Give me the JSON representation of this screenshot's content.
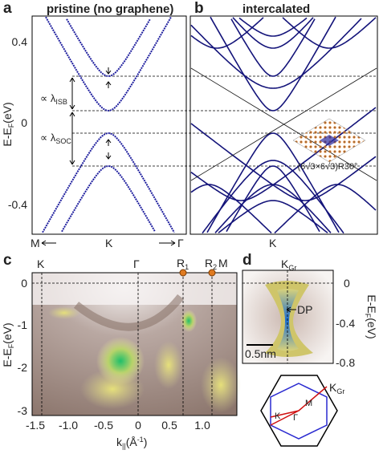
{
  "panel_a": {
    "label": "a",
    "title": "pristine (no graphene)",
    "y_label": {
      "text": "E-E",
      "sub": "F",
      "unit": "(eV)"
    },
    "y_ticks": [
      "0.4",
      "0",
      "-0.4"
    ],
    "x_labels": [
      "M",
      "K",
      "Γ"
    ],
    "annotations": [
      {
        "text": "∝ λ",
        "sub": "ISB"
      },
      {
        "text": "∝ λ",
        "sub": "SOC"
      }
    ]
  },
  "panel_b": {
    "label": "b",
    "title": "intercalated",
    "x_label": "K",
    "inset_label": "(6√3×6√3)R30°"
  },
  "panel_c": {
    "label": "c",
    "top_labels": [
      {
        "text": "K"
      },
      {
        "text": "Γ"
      },
      {
        "text": "R",
        "sub": "1"
      },
      {
        "text": "R",
        "sub": "2"
      },
      {
        "text": "M"
      }
    ],
    "y_label": {
      "text": "E-E",
      "sub": "F",
      "unit": "(eV)"
    },
    "y_ticks": [
      "0",
      "-1",
      "-2",
      "-3"
    ],
    "x_ticks": [
      "-1.5",
      "-1.0",
      "-0.5",
      "0",
      "0.5",
      "1.0"
    ],
    "x_label": {
      "text": "k",
      "sub": "||",
      "unit": "(Å",
      "sup": "-1",
      "close": ")"
    }
  },
  "panel_d": {
    "label": "d",
    "top_label": {
      "text": "K",
      "sub": "Gr"
    },
    "annotation": "DP",
    "scale_bar": "0.5nm",
    "y_ticks": [
      "0",
      "-0.4",
      "-0.8"
    ],
    "y_label": {
      "text": "E-E",
      "sub": "F",
      "unit": "(eV)"
    },
    "bz_labels": [
      {
        "text": "K",
        "sub": "Gr"
      },
      {
        "text": "M"
      },
      {
        "text": "Γ"
      },
      {
        "text": "K"
      }
    ]
  }
}
